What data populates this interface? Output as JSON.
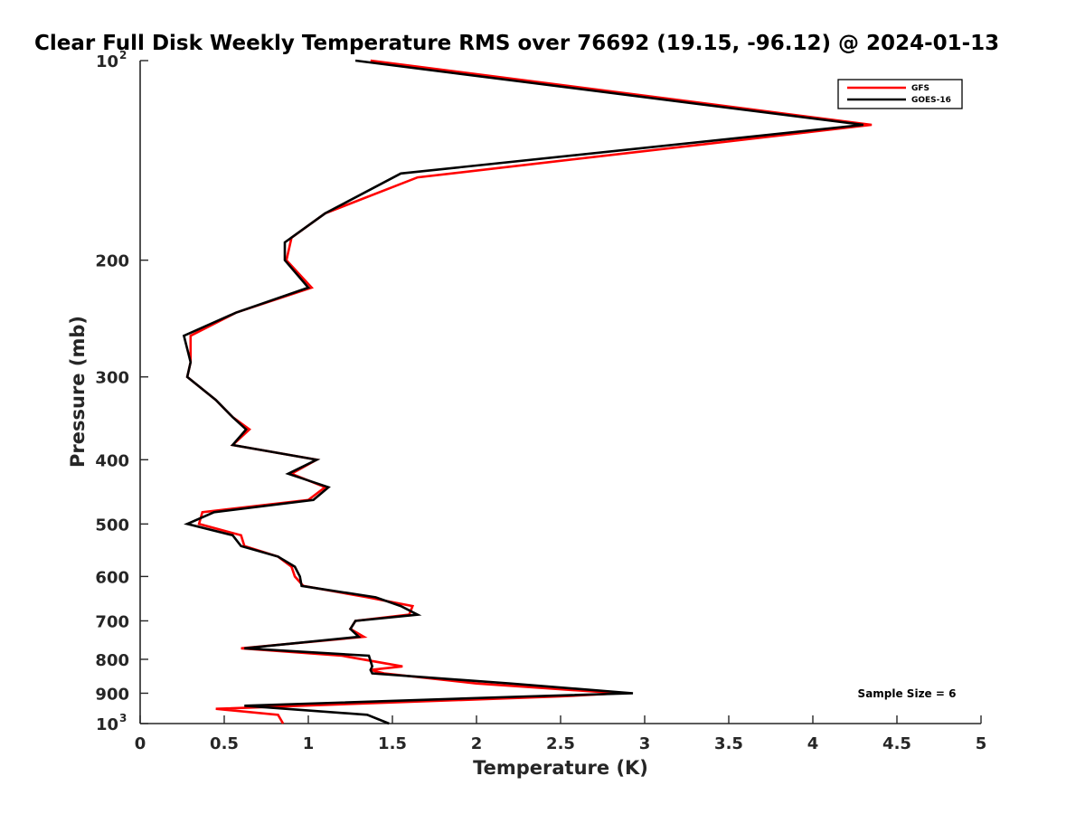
{
  "chart_data": {
    "type": "line",
    "title": "Clear Full Disk Weekly Temperature RMS over 76692 (19.15, -96.12) @ 2024-01-13",
    "xlabel": "Temperature (K)",
    "ylabel": "Pressure (mb)",
    "xlim": [
      0,
      5
    ],
    "ylim": [
      100,
      1000
    ],
    "y_scale": "log",
    "y_reversed": true,
    "grid": false,
    "legend_position": "top-right",
    "x_ticks": [
      "0",
      "0.5",
      "1",
      "1.5",
      "2",
      "2.5",
      "3",
      "3.5",
      "4",
      "4.5",
      "5"
    ],
    "y_ticks": [
      {
        "value": 100,
        "base": "10",
        "exp": "2"
      },
      {
        "value": 200,
        "label": "200"
      },
      {
        "value": 300,
        "label": "300"
      },
      {
        "value": 400,
        "label": "400"
      },
      {
        "value": 500,
        "label": "500"
      },
      {
        "value": 600,
        "label": "600"
      },
      {
        "value": 700,
        "label": "700"
      },
      {
        "value": 800,
        "label": "800"
      },
      {
        "value": 900,
        "label": "900"
      },
      {
        "value": 1000,
        "base": "10",
        "exp": "3"
      }
    ],
    "series": [
      {
        "name": "GFS",
        "color": "#ff0000",
        "points": [
          [
            1.37,
            100
          ],
          [
            4.35,
            125
          ],
          [
            1.65,
            150
          ],
          [
            1.1,
            170
          ],
          [
            0.9,
            185
          ],
          [
            0.87,
            200
          ],
          [
            1.02,
            220
          ],
          [
            0.57,
            240
          ],
          [
            0.3,
            260
          ],
          [
            0.3,
            285
          ],
          [
            0.28,
            300
          ],
          [
            0.45,
            325
          ],
          [
            0.55,
            345
          ],
          [
            0.65,
            360
          ],
          [
            0.55,
            380
          ],
          [
            1.05,
            400
          ],
          [
            0.9,
            420
          ],
          [
            1.1,
            440
          ],
          [
            1.0,
            460
          ],
          [
            0.37,
            480
          ],
          [
            0.35,
            500
          ],
          [
            0.6,
            520
          ],
          [
            0.62,
            540
          ],
          [
            0.82,
            560
          ],
          [
            0.9,
            580
          ],
          [
            0.92,
            600
          ],
          [
            0.97,
            620
          ],
          [
            1.35,
            645
          ],
          [
            1.62,
            665
          ],
          [
            1.6,
            685
          ],
          [
            1.28,
            700
          ],
          [
            1.25,
            720
          ],
          [
            1.33,
            740
          ],
          [
            0.6,
            770
          ],
          [
            1.2,
            790
          ],
          [
            1.56,
            820
          ],
          [
            1.37,
            830
          ],
          [
            1.45,
            840
          ],
          [
            2.0,
            870
          ],
          [
            2.85,
            900
          ],
          [
            2.5,
            910
          ],
          [
            0.45,
            950
          ],
          [
            0.82,
            970
          ],
          [
            0.85,
            1000
          ]
        ]
      },
      {
        "name": "GOES-16",
        "color": "#000000",
        "points": [
          [
            1.28,
            100
          ],
          [
            4.3,
            125
          ],
          [
            1.55,
            148
          ],
          [
            1.1,
            170
          ],
          [
            0.86,
            188
          ],
          [
            0.86,
            200
          ],
          [
            1.0,
            220
          ],
          [
            0.57,
            240
          ],
          [
            0.26,
            260
          ],
          [
            0.3,
            285
          ],
          [
            0.28,
            300
          ],
          [
            0.45,
            325
          ],
          [
            0.55,
            345
          ],
          [
            0.63,
            360
          ],
          [
            0.55,
            380
          ],
          [
            1.05,
            400
          ],
          [
            0.88,
            420
          ],
          [
            1.12,
            440
          ],
          [
            1.03,
            460
          ],
          [
            0.44,
            480
          ],
          [
            0.28,
            500
          ],
          [
            0.55,
            520
          ],
          [
            0.6,
            540
          ],
          [
            0.82,
            560
          ],
          [
            0.92,
            580
          ],
          [
            0.95,
            600
          ],
          [
            0.96,
            620
          ],
          [
            1.4,
            645
          ],
          [
            1.55,
            665
          ],
          [
            1.65,
            685
          ],
          [
            1.28,
            700
          ],
          [
            1.25,
            720
          ],
          [
            1.3,
            740
          ],
          [
            0.62,
            770
          ],
          [
            1.36,
            790
          ],
          [
            1.38,
            820
          ],
          [
            1.37,
            830
          ],
          [
            1.38,
            840
          ],
          [
            2.2,
            870
          ],
          [
            2.93,
            900
          ],
          [
            2.3,
            910
          ],
          [
            0.62,
            940
          ],
          [
            1.35,
            970
          ],
          [
            1.48,
            1000
          ]
        ]
      }
    ],
    "annotations": [
      {
        "text": "Sample Size = 6"
      }
    ]
  }
}
